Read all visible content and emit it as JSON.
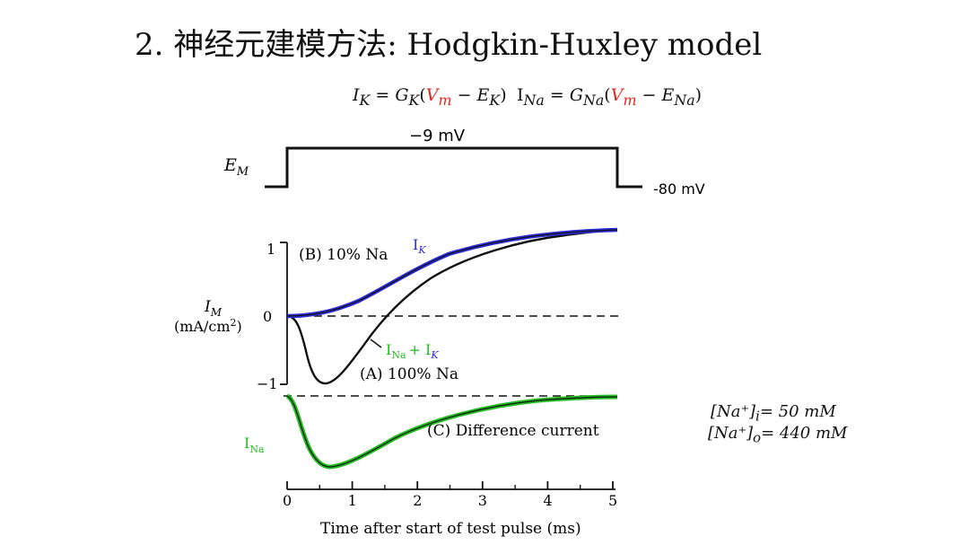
{
  "title": "2. 神经元建模方法: Hodgkin-Huxley model",
  "equations": {
    "ik": {
      "lhs": "I",
      "lhs_sub": "K",
      "g": "G",
      "g_sub": "K",
      "v": "V",
      "v_sub": "m",
      "e": "E",
      "e_sub": "K"
    },
    "ina": {
      "lhs": "I",
      "lhs_sub": "Na",
      "g": "G",
      "g_sub": "Na",
      "v": "V",
      "v_sub": "m",
      "e": "E",
      "e_sub": "Na"
    }
  },
  "voltage_trace": {
    "label": "E",
    "label_sub": "M",
    "high": "−9 mV",
    "low": "-80 mV"
  },
  "current_plot": {
    "ylabel_main": "I",
    "ylabel_sub": "M",
    "ylabel_unit": "(mA/cm",
    "ylabel_unit_sup": "2",
    "ylabel_unit_end": ")",
    "y_ticks": [
      "1",
      "0",
      "−1"
    ],
    "x_ticks": [
      "0",
      "1",
      "2",
      "3",
      "4",
      "5"
    ],
    "xlabel": "Time after start of test pulse (ms)",
    "label_b": "(B) 10% Na",
    "label_a": "(A) 100% Na",
    "label_c": "(C) Difference current",
    "ik_label": "I",
    "ik_label_sub": "K",
    "sum_label_na": "I",
    "sum_label_na_sub": "Na",
    "sum_label_plus": "+ I",
    "sum_label_k_sub": "K",
    "ina_label": "I",
    "ina_label_sub": "Na"
  },
  "concentrations": {
    "inside": "[Na⁺]",
    "inside_sub": "i",
    "inside_val": "= 50 mM",
    "outside": "[Na⁺]",
    "outside_sub": "o",
    "outside_val": "= 440 mM"
  },
  "colors": {
    "ik": "#2a2ad6",
    "ina": "#22bb22",
    "red": "#e0261f"
  }
}
